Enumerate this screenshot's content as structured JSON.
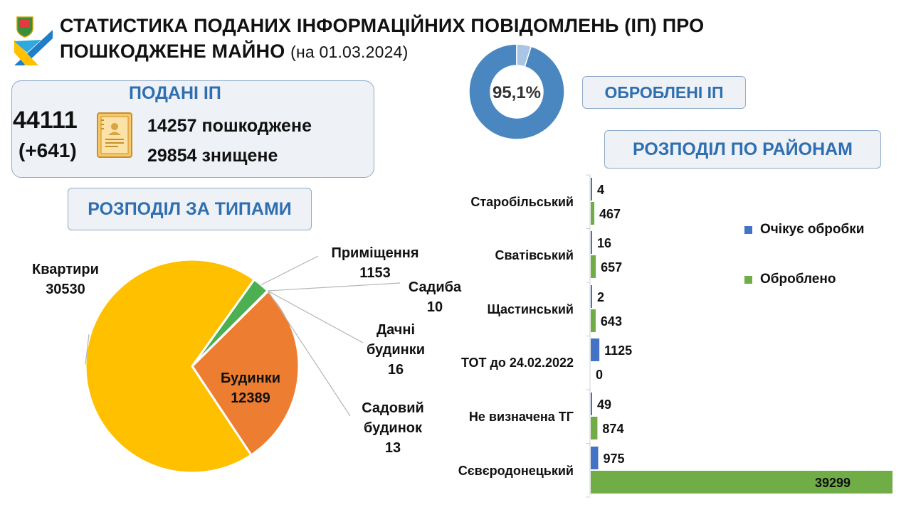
{
  "header": {
    "title_line1": "СТАТИСТИКА ПОДАНИХ ІНФОРМАЦІЙНИХ ПОВІДОМЛЕНЬ (ІП) ПРО",
    "title_line2": "ПОШКОДЖЕНЕ МАЙНО",
    "date": "(на 01.03.2024)"
  },
  "submitted": {
    "label": "ПОДАНІ ІП",
    "total": "44111",
    "delta": "(+641)",
    "damaged": "14257 пошкоджене",
    "destroyed": "29854 знищене",
    "icon": "document-icon"
  },
  "processed": {
    "label": "ОБРОБЛЕНІ ІП",
    "percent_label": "95,1%"
  },
  "types_label": "РОЗПОДІЛ ЗА ТИПАМИ",
  "districts_label": "РОЗПОДІЛ ПО РАЙОНАМ",
  "colors": {
    "accent": "#2f6fb0",
    "donut_main": "#4a86c0",
    "donut_rest": "#a9c4e4",
    "pie_flats": "#ffc000",
    "pie_houses": "#ed7d31",
    "pie_premises": "#4caf50",
    "bar_pending": "#4472c4",
    "bar_processed": "#70ad47"
  },
  "chart_data": [
    {
      "type": "pie",
      "title": "",
      "slices": [
        {
          "label": "Квартири",
          "value": 30530
        },
        {
          "label": "Будинки",
          "value": 12389
        },
        {
          "label": "Приміщення",
          "value": 1153
        },
        {
          "label": "Садиба",
          "value": 10
        },
        {
          "label": "Дачні будинки",
          "value": 16
        },
        {
          "label": "Садовий будинок",
          "value": 13
        }
      ],
      "label_lines": {
        "Квартири": [
          "Квартири",
          "30530"
        ],
        "Будинки": [
          "Будинки",
          "12389"
        ],
        "Приміщення": [
          "Приміщення",
          "1153"
        ],
        "Садиба": [
          "Садиба",
          "10"
        ],
        "Дачні будинки": [
          "Дачні",
          "будинки",
          "16"
        ],
        "Садовий будинок": [
          "Садовий",
          "будинок",
          "13"
        ]
      }
    },
    {
      "type": "pie",
      "subtype": "donut",
      "title": "",
      "slices": [
        {
          "label": "",
          "value": 95.1
        },
        {
          "label": "",
          "value": 4.9
        }
      ],
      "center_label": "95,1%"
    },
    {
      "type": "bar",
      "orientation": "horizontal",
      "title": "",
      "categories": [
        "Старобільський",
        "Сватівський",
        "Щастинський",
        "ТОТ до 24.02.2022",
        "Не визначена ТГ",
        "Сєвєродонецький"
      ],
      "series": [
        {
          "name": "Очікує обробки",
          "values": [
            4,
            16,
            2,
            1125,
            49,
            975
          ]
        },
        {
          "name": "Оброблено",
          "values": [
            467,
            657,
            643,
            0,
            874,
            39299
          ]
        }
      ],
      "xlim": [
        0,
        39299
      ],
      "legend": "right",
      "grid": false
    }
  ]
}
